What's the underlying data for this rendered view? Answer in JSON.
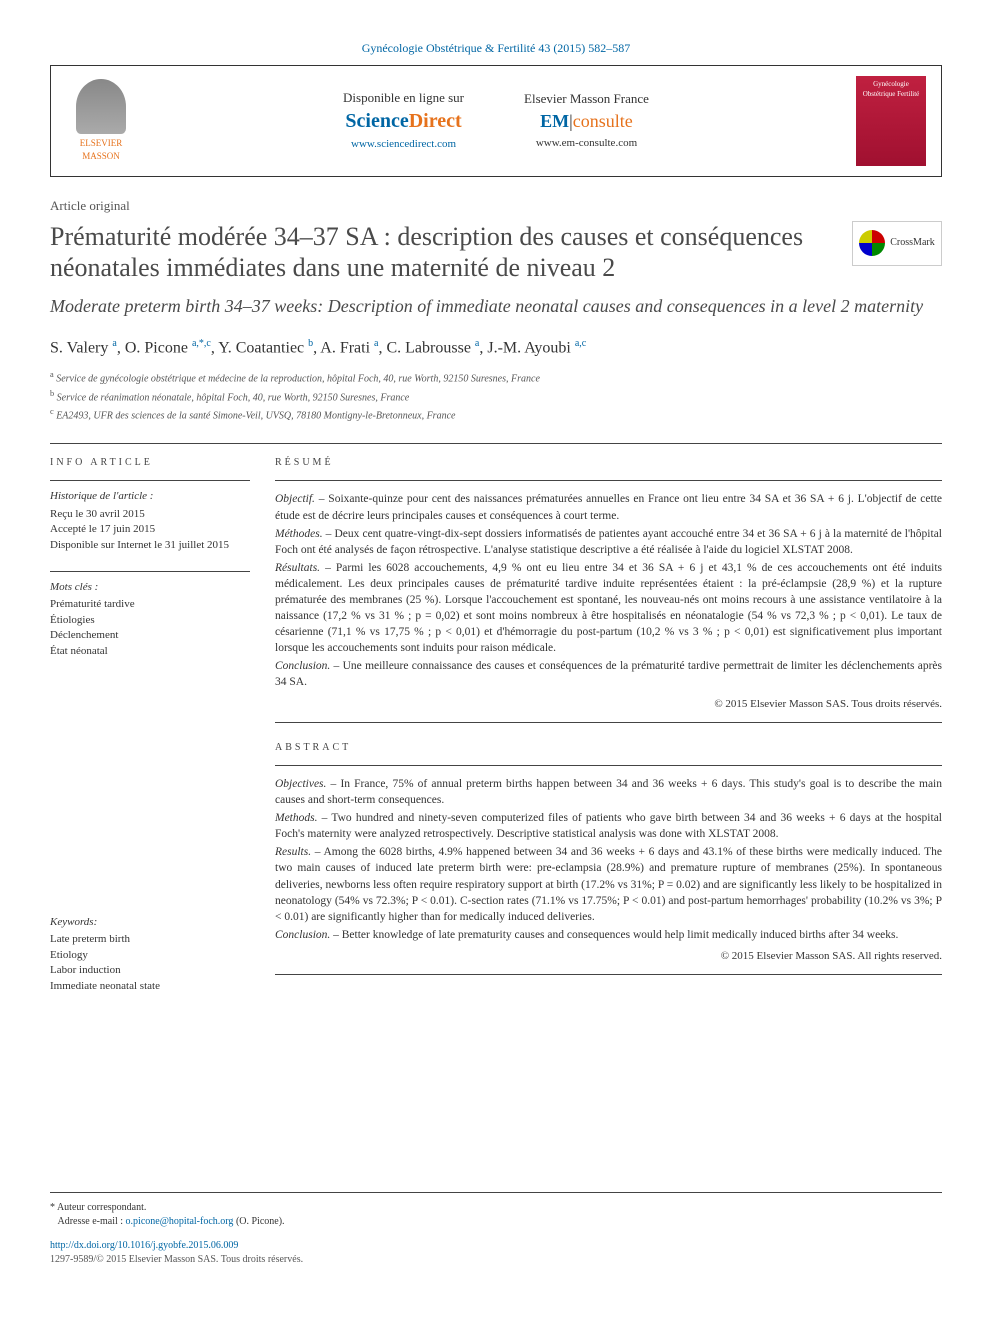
{
  "journal_header": "Gynécologie Obstétrique & Fertilité 43 (2015) 582–587",
  "header": {
    "elsevier_label": "ELSEVIER",
    "masson_label": "MASSON",
    "sciencedirect": {
      "available": "Disponible en ligne sur",
      "science": "Science",
      "direct": "Direct",
      "url": "www.sciencedirect.com"
    },
    "emconsulte": {
      "brand": "Elsevier Masson France",
      "em": "EM",
      "consulte": "consulte",
      "url": "www.em-consulte.com"
    },
    "journal_cover": "Gynécologie Obstétrique Fertilité"
  },
  "article_category": "Article original",
  "title": "Prématurité modérée 34–37 SA : description des causes et conséquences néonatales immédiates dans une maternité de niveau 2",
  "subtitle": "Moderate preterm birth 34–37 weeks: Description of immediate neonatal causes and consequences in a level 2 maternity",
  "crossmark": "CrossMark",
  "authors_html": "S. Valery <sup>a</sup>, O. Picone <sup>a,*,c</sup>, Y. Coatantiec <sup>b</sup>, A. Frati <sup>a</sup>, C. Labrousse <sup>a</sup>, J.-M. Ayoubi <sup>a,c</sup>",
  "affiliations": {
    "a": "Service de gynécologie obstétrique et médecine de la reproduction, hôpital Foch, 40, rue Worth, 92150 Suresnes, France",
    "b": "Service de réanimation néonatale, hôpital Foch, 40, rue Worth, 92150 Suresnes, France",
    "c": "EA2493, UFR des sciences de la santé Simone-Veil, UVSQ, 78180 Montigny-le-Bretonneux, France"
  },
  "info_article": {
    "header": "INFO ARTICLE",
    "history_label": "Historique de l'article :",
    "received": "Reçu le 30 avril 2015",
    "accepted": "Accepté le 17 juin 2015",
    "online": "Disponible sur Internet le 31 juillet 2015",
    "keywords_fr_label": "Mots clés :",
    "keywords_fr": [
      "Prématurité tardive",
      "Étiologies",
      "Déclenchement",
      "État néonatal"
    ],
    "keywords_en_label": "Keywords:",
    "keywords_en": [
      "Late preterm birth",
      "Etiology",
      "Labor induction",
      "Immediate neonatal state"
    ]
  },
  "resume": {
    "header": "RÉSUMÉ",
    "objectif_label": "Objectif. –",
    "objectif": "Soixante-quinze pour cent des naissances prématurées annuelles en France ont lieu entre 34 SA et 36 SA + 6 j. L'objectif de cette étude est de décrire leurs principales causes et conséquences à court terme.",
    "methodes_label": "Méthodes. –",
    "methodes": "Deux cent quatre-vingt-dix-sept dossiers informatisés de patientes ayant accouché entre 34 et 36 SA + 6 j à la maternité de l'hôpital Foch ont été analysés de façon rétrospective. L'analyse statistique descriptive a été réalisée à l'aide du logiciel XLSTAT 2008.",
    "resultats_label": "Résultats. –",
    "resultats": "Parmi les 6028 accouchements, 4,9 % ont eu lieu entre 34 et 36 SA + 6 j et 43,1 % de ces accouchements ont été induits médicalement. Les deux principales causes de prématurité tardive induite représentées étaient : la pré-éclampsie (28,9 %) et la rupture prématurée des membranes (25 %). Lorsque l'accouchement est spontané, les nouveau-nés ont moins recours à une assistance ventilatoire à la naissance (17,2 % vs 31 % ; p = 0,02) et sont moins nombreux à être hospitalisés en néonatalogie (54 % vs 72,3 % ; p < 0,01). Le taux de césarienne (71,1 % vs 17,75 % ; p < 0,01) et d'hémorragie du post-partum (10,2 % vs 3 % ; p < 0,01) est significativement plus important lorsque les accouchements sont induits pour raison médicale.",
    "conclusion_label": "Conclusion. –",
    "conclusion": "Une meilleure connaissance des causes et conséquences de la prématurité tardive permettrait de limiter les déclenchements après 34 SA.",
    "copyright": "© 2015 Elsevier Masson SAS. Tous droits réservés."
  },
  "abstract": {
    "header": "ABSTRACT",
    "objectives_label": "Objectives. –",
    "objectives": "In France, 75% of annual preterm births happen between 34 and 36 weeks + 6 days. This study's goal is to describe the main causes and short-term consequences.",
    "methods_label": "Methods. –",
    "methods": "Two hundred and ninety-seven computerized files of patients who gave birth between 34 and 36 weeks + 6 days at the hospital Foch's maternity were analyzed retrospectively. Descriptive statistical analysis was done with XLSTAT 2008.",
    "results_label": "Results. –",
    "results": "Among the 6028 births, 4.9% happened between 34 and 36 weeks + 6 days and 43.1% of these births were medically induced. The two main causes of induced late preterm birth were: pre-eclampsia (28.9%) and premature rupture of membranes (25%). In spontaneous deliveries, newborns less often require respiratory support at birth (17.2% vs 31%; P = 0.02) and are significantly less likely to be hospitalized in neonatology (54% vs 72.3%; P < 0.01). C-section rates (71.1% vs 17.75%; P < 0.01) and post-partum hemorrhages' probability (10.2% vs 3%; P < 0.01) are significantly higher than for medically induced deliveries.",
    "conclusion_label": "Conclusion. –",
    "conclusion": "Better knowledge of late prematurity causes and consequences would help limit medically induced births after 34 weeks.",
    "copyright": "© 2015 Elsevier Masson SAS. All rights reserved."
  },
  "footer": {
    "corresponding": "* Auteur correspondant.",
    "email_label": "Adresse e-mail :",
    "email": "o.picone@hopital-foch.org",
    "email_name": "(O. Picone).",
    "doi": "http://dx.doi.org/10.1016/j.gyobfe.2015.06.009",
    "copyright": "1297-9589/© 2015 Elsevier Masson SAS. Tous droits réservés."
  },
  "colors": {
    "link_blue": "#0066a4",
    "orange": "#e6721c",
    "text_dark": "#333333",
    "cover_red": "#c02040"
  }
}
